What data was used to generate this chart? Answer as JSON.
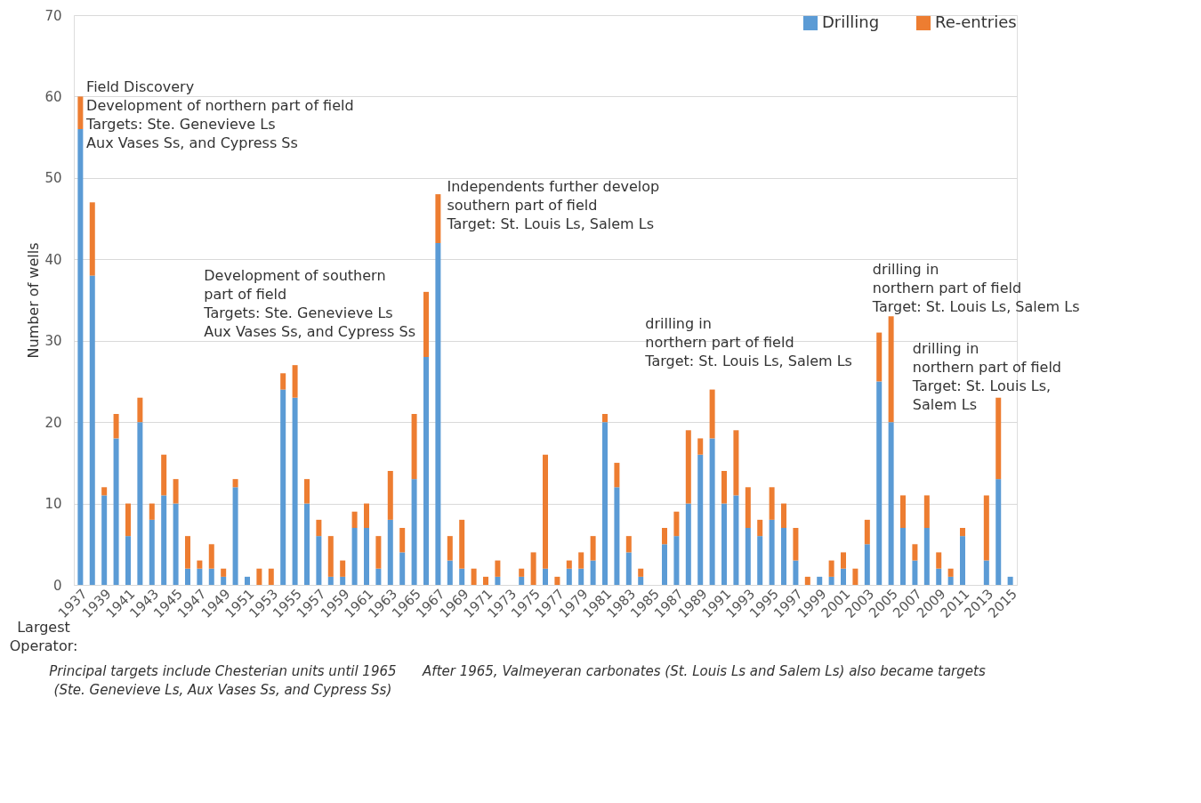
{
  "chart_data": {
    "type": "bar",
    "stacked": true,
    "ylabel": "Number of wells",
    "categories": [
      "1937",
      null,
      "1939",
      null,
      "1941",
      null,
      "1943",
      null,
      "1945",
      null,
      "1947",
      null,
      "1949",
      null,
      "1951",
      null,
      "1953",
      null,
      "1955",
      null,
      "1957",
      null,
      "1959",
      null,
      "1961",
      null,
      "1963",
      null,
      "1965",
      null,
      "1967",
      null,
      "1969",
      null,
      "1971",
      null,
      "1973",
      null,
      "1975",
      null,
      "1977",
      null,
      "1979",
      null,
      "1981",
      null,
      "1983",
      null,
      "1985",
      null,
      "1987",
      null,
      "1989",
      null,
      "1991",
      null,
      "1993",
      null,
      "1995",
      null,
      "1997",
      null,
      "1999",
      null,
      "2001",
      null,
      "2003",
      null,
      "2005",
      null,
      "2007",
      null,
      "2009",
      null,
      "2011",
      null,
      "2013",
      null,
      "2015"
    ],
    "series": [
      {
        "name": "Drilling",
        "color": "#5b9bd5",
        "values": [
          56,
          38,
          11,
          18,
          6,
          20,
          8,
          11,
          10,
          2,
          2,
          2,
          1,
          12,
          1,
          0,
          0,
          24,
          23,
          10,
          6,
          1,
          1,
          7,
          7,
          2,
          8,
          4,
          13,
          28,
          42,
          3,
          2,
          0,
          0,
          1,
          0,
          1,
          0,
          2,
          0,
          2,
          2,
          3,
          20,
          12,
          4,
          1,
          0,
          5,
          6,
          10,
          16,
          18,
          10,
          11,
          7,
          6,
          8,
          7,
          3,
          0,
          1,
          1,
          2,
          0,
          5,
          25,
          20,
          7,
          3,
          7,
          2,
          1,
          6,
          0,
          3,
          13,
          1
        ]
      },
      {
        "name": "Re-entries",
        "color": "#ed7d31",
        "values": [
          4,
          9,
          1,
          3,
          4,
          3,
          2,
          5,
          3,
          4,
          1,
          3,
          1,
          1,
          0,
          2,
          2,
          2,
          4,
          3,
          2,
          5,
          2,
          2,
          3,
          4,
          6,
          3,
          8,
          8,
          6,
          3,
          6,
          2,
          1,
          2,
          0,
          1,
          4,
          14,
          1,
          1,
          2,
          3,
          1,
          3,
          2,
          1,
          0,
          2,
          3,
          9,
          2,
          6,
          4,
          8,
          5,
          2,
          4,
          3,
          4,
          1,
          0,
          2,
          2,
          2,
          3,
          6,
          13,
          4,
          2,
          4,
          2,
          1,
          1,
          0,
          8,
          10,
          0
        ]
      }
    ],
    "ylim": [
      0,
      70
    ],
    "yticks": [
      0,
      10,
      20,
      30,
      40,
      50,
      60,
      70
    ],
    "grid": "y",
    "legend": "top right",
    "annotations": [
      "Field Discovery\nDevelopment of northern part of field\nTargets: Ste. Genevieve Ls\nAux Vases Ss, and Cypress Ss",
      "Development of southern\npart of field\nTargets: Ste. Genevieve Ls\nAux Vases Ss, and Cypress Ss",
      "Independents further develop\nsouthern part of field\nTarget: St. Louis Ls, Salem Ls",
      "drilling in\nnorthern part of field\nTarget: St. Louis Ls, Salem Ls",
      "drilling in\nnorthern part of field\nTarget: St. Louis Ls, Salem Ls",
      "drilling in\nnorthern part of field\nTarget: St. Louis Ls,\nSalem Ls",
      "Largest\nOperator:",
      "Principal targets include Chesterian units until 1965\n(Ste. Genevieve Ls, Aux Vases Ss, and Cypress Ss)",
      "After 1965, Valmeyeran carbonates (St. Louis Ls and Salem Ls) also became targets"
    ]
  }
}
